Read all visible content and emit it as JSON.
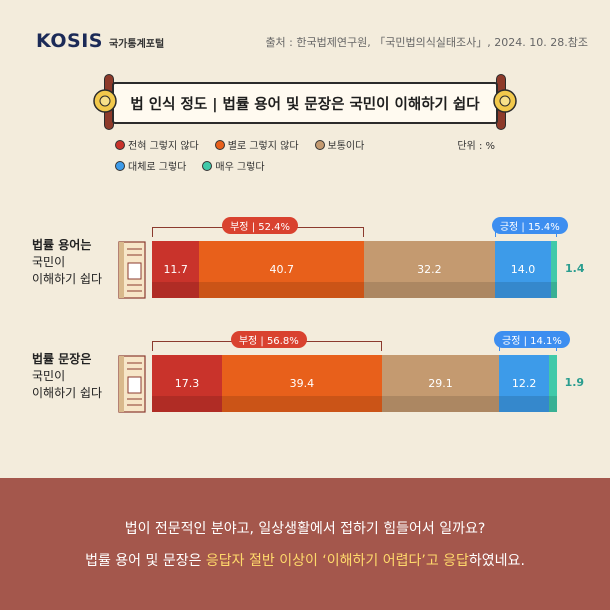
{
  "header": {
    "brand": "KOSIS",
    "brand_sub": "국가통계포털",
    "source": "출처 : 한국법제연구원, 「국민법의식실태조사」, 2024. 10. 28.참조"
  },
  "chart_data": {
    "type": "bar",
    "orientation": "horizontal-stacked",
    "title": "법 인식 정도 | 법률 용어 및 문장은 국민이 이해하기 쉽다",
    "unit": "단위 : %",
    "legend": [
      {
        "name": "전혀 그렇지 않다",
        "color": "#c9332b"
      },
      {
        "name": "별로 그렇지 않다",
        "color": "#e8601b"
      },
      {
        "name": "보통이다",
        "color": "#c49a70"
      },
      {
        "name": "대체로 그렇다",
        "color": "#3d9be9"
      },
      {
        "name": "매우 그렇다",
        "color": "#40c9a9"
      }
    ],
    "categories": [
      {
        "label_strong": "법률 용어는",
        "label_lines": [
          "국민이",
          "이해하기 쉽다"
        ]
      },
      {
        "label_strong": "법률 문장은",
        "label_lines": [
          "국민이",
          "이해하기 쉽다"
        ]
      }
    ],
    "series": [
      {
        "name": "전혀 그렇지 않다",
        "values": [
          11.7,
          17.3
        ]
      },
      {
        "name": "별로 그렇지 않다",
        "values": [
          40.7,
          39.4
        ]
      },
      {
        "name": "보통이다",
        "values": [
          32.2,
          29.1
        ]
      },
      {
        "name": "대체로 그렇다",
        "values": [
          14.0,
          12.2
        ]
      },
      {
        "name": "매우 그렇다",
        "values": [
          1.4,
          1.9
        ]
      }
    ],
    "value_labels": [
      [
        "11.7",
        "40.7",
        "32.2",
        "14.0",
        "1.4"
      ],
      [
        "17.3",
        "39.4",
        "29.1",
        "12.2",
        "1.9"
      ]
    ],
    "negative_totals": [
      "부정 | 52.4%",
      "부정 | 56.8%"
    ],
    "positive_totals": [
      "긍정 | 15.4%",
      "긍정 | 14.1%"
    ],
    "xlim": [
      0,
      100
    ]
  },
  "footer": {
    "line1": "법이 전문적인 분야고, 일상생활에서 접하기 힘들어서 일까요?",
    "line2_pre": "법률 용어 및 문장은 ",
    "line2_hl1": "응답자 절반 이상이 ‘이해하기 어렵다’고 응답",
    "line2_post": "하였네요."
  }
}
